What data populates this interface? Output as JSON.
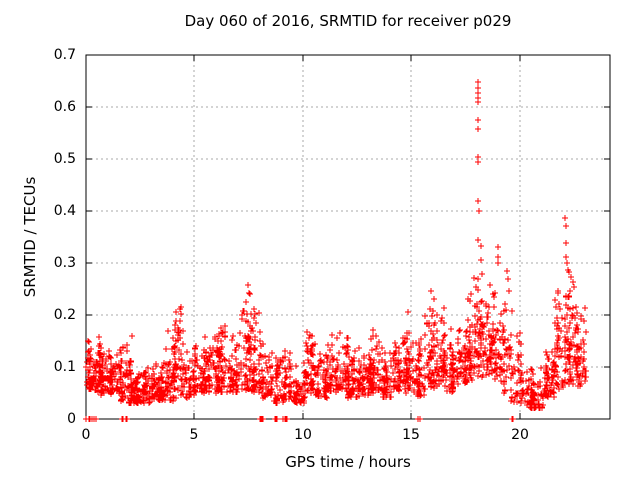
{
  "chart_data": {
    "type": "scatter",
    "title": "Day 060 of 2016, SRMTID for receiver p029",
    "xlabel": "GPS time / hours",
    "ylabel": "SRMTID / TECUs",
    "xlim": [
      0,
      24.15
    ],
    "ylim": [
      0,
      0.7
    ],
    "xticks": [
      "0",
      "5",
      "10",
      "15",
      "20"
    ],
    "yticks": [
      "0",
      "0.1",
      "0.2",
      "0.3",
      "0.4",
      "0.5",
      "0.6",
      "0.7"
    ],
    "grid": true,
    "legend": "none",
    "marker": "plus",
    "colors": {
      "points": "#ff0000",
      "grid": "#a8a8a8",
      "axis": "#000000",
      "text": "#000000",
      "background": "#ffffff"
    },
    "seed": 77,
    "scatter_bands": [
      [
        0.05,
        0.3,
        45,
        0.055,
        0.175
      ],
      [
        0.3,
        0.7,
        55,
        0.05,
        0.16
      ],
      [
        0.7,
        1.1,
        50,
        0.045,
        0.135
      ],
      [
        1.1,
        1.6,
        55,
        0.045,
        0.145
      ],
      [
        1.6,
        2.1,
        65,
        0.03,
        0.165
      ],
      [
        2.1,
        2.6,
        50,
        0.03,
        0.1
      ],
      [
        2.6,
        3.1,
        55,
        0.03,
        0.115
      ],
      [
        3.1,
        3.6,
        50,
        0.035,
        0.12
      ],
      [
        3.6,
        4.1,
        55,
        0.03,
        0.185
      ],
      [
        4.1,
        4.6,
        55,
        0.04,
        0.225
      ],
      [
        4.6,
        5.1,
        50,
        0.04,
        0.15
      ],
      [
        5.1,
        5.6,
        50,
        0.05,
        0.16
      ],
      [
        5.6,
        6.1,
        55,
        0.05,
        0.2
      ],
      [
        6.1,
        6.6,
        55,
        0.05,
        0.22
      ],
      [
        6.6,
        7.1,
        50,
        0.05,
        0.175
      ],
      [
        7.1,
        7.6,
        55,
        0.055,
        0.26
      ],
      [
        7.6,
        8.1,
        55,
        0.05,
        0.22
      ],
      [
        8.1,
        8.6,
        45,
        0.04,
        0.15
      ],
      [
        8.6,
        9.1,
        40,
        0.03,
        0.145
      ],
      [
        9.1,
        9.6,
        40,
        0.03,
        0.14
      ],
      [
        9.6,
        10.1,
        45,
        0.03,
        0.125
      ],
      [
        10.1,
        10.6,
        55,
        0.045,
        0.19
      ],
      [
        10.6,
        11.1,
        50,
        0.04,
        0.15
      ],
      [
        11.1,
        11.6,
        55,
        0.05,
        0.165
      ],
      [
        11.6,
        12.1,
        55,
        0.04,
        0.18
      ],
      [
        12.1,
        12.6,
        50,
        0.04,
        0.145
      ],
      [
        12.6,
        13.1,
        55,
        0.045,
        0.16
      ],
      [
        13.1,
        13.6,
        55,
        0.05,
        0.185
      ],
      [
        13.6,
        14.1,
        50,
        0.04,
        0.15
      ],
      [
        14.1,
        14.6,
        50,
        0.05,
        0.165
      ],
      [
        14.6,
        15.1,
        55,
        0.05,
        0.21
      ],
      [
        15.1,
        15.6,
        50,
        0.04,
        0.17
      ],
      [
        15.6,
        16.1,
        55,
        0.055,
        0.25
      ],
      [
        16.1,
        16.6,
        55,
        0.06,
        0.225
      ],
      [
        16.6,
        17.1,
        50,
        0.05,
        0.2
      ],
      [
        17.1,
        17.6,
        55,
        0.065,
        0.205
      ],
      [
        17.6,
        18.1,
        55,
        0.075,
        0.28
      ],
      [
        18.1,
        18.6,
        55,
        0.08,
        0.3
      ],
      [
        18.6,
        19.1,
        50,
        0.075,
        0.3
      ],
      [
        19.1,
        19.6,
        50,
        0.05,
        0.26
      ],
      [
        19.6,
        20.1,
        40,
        0.03,
        0.18
      ],
      [
        20.1,
        20.6,
        40,
        0.02,
        0.115
      ],
      [
        20.6,
        21.1,
        40,
        0.02,
        0.1
      ],
      [
        21.1,
        21.6,
        50,
        0.04,
        0.165
      ],
      [
        21.6,
        22.1,
        55,
        0.055,
        0.28
      ],
      [
        22.1,
        22.6,
        65,
        0.065,
        0.31
      ],
      [
        22.6,
        23.05,
        55,
        0.055,
        0.235
      ]
    ],
    "outlier_points": [
      [
        18.05,
        0.648
      ],
      [
        18.06,
        0.636
      ],
      [
        18.07,
        0.627
      ],
      [
        18.05,
        0.618
      ],
      [
        18.08,
        0.609
      ],
      [
        18.06,
        0.575
      ],
      [
        18.07,
        0.558
      ],
      [
        18.05,
        0.503
      ],
      [
        18.08,
        0.494
      ],
      [
        18.06,
        0.42
      ],
      [
        18.09,
        0.4
      ],
      [
        18.07,
        0.345
      ],
      [
        18.2,
        0.332
      ],
      [
        18.22,
        0.305
      ],
      [
        18.05,
        0.27
      ],
      [
        18.06,
        0.248
      ],
      [
        18.04,
        0.222
      ],
      [
        18.05,
        0.19
      ],
      [
        18.06,
        0.16
      ],
      [
        18.04,
        0.13
      ],
      [
        18.97,
        0.331
      ],
      [
        18.99,
        0.312
      ],
      [
        19.01,
        0.3
      ],
      [
        19.42,
        0.285
      ],
      [
        19.45,
        0.27
      ],
      [
        22.07,
        0.386
      ],
      [
        22.1,
        0.371
      ],
      [
        22.12,
        0.338
      ],
      [
        22.14,
        0.312
      ],
      [
        22.16,
        0.3
      ],
      [
        7.48,
        0.258
      ],
      [
        7.5,
        0.243
      ],
      [
        15.88,
        0.247
      ],
      [
        4.4,
        0.215
      ],
      [
        0.02,
        0.1
      ]
    ],
    "zero_clusters": [
      {
        "x": 0.1,
        "n": 8,
        "w": 0.22
      },
      {
        "x": 0.27,
        "n": 1,
        "w": 0
      },
      {
        "x": 0.36,
        "n": 1,
        "w": 0
      },
      {
        "x": 0.46,
        "n": 1,
        "w": 0
      },
      {
        "x": 1.7,
        "n": 3,
        "w": 0.05
      },
      {
        "x": 1.87,
        "n": 3,
        "w": 0.05
      },
      {
        "x": 8.09,
        "n": 7,
        "w": 0.2
      },
      {
        "x": 8.69,
        "n": 7,
        "w": 0.2
      },
      {
        "x": 9.17,
        "n": 8,
        "w": 0.26
      },
      {
        "x": 15.33,
        "n": 5,
        "w": 0.1
      },
      {
        "x": 19.67,
        "n": 5,
        "w": 0.1
      }
    ]
  }
}
